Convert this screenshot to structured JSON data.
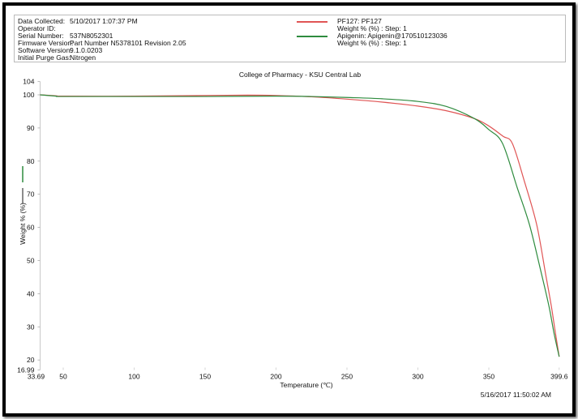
{
  "header": {
    "fields": [
      {
        "key": "Data Collected:",
        "value": "5/10/2017 1:07:37 PM"
      },
      {
        "key": "Operator ID:",
        "value": ""
      },
      {
        "key": "Serial Number:",
        "value": "537N8052301"
      },
      {
        "key": "Firmware Version:",
        "value": "Part Number N5378101  Revision 2.05"
      },
      {
        "key": "Software Version:",
        "value": "9.1.0.0203"
      },
      {
        "key": "Initial Purge Gas:",
        "value": "Nitrogen"
      }
    ],
    "legend": [
      {
        "name": "PF127: PF127",
        "sub": "Weight % (%) : Step: 1",
        "color": "#e05555"
      },
      {
        "name": "Apigenin: Apigenin@170510123036",
        "sub": "Weight % (%) : Step: 1",
        "color": "#2e8b3e"
      }
    ]
  },
  "footer": {
    "timestamp": "5/16/2017 11:50:02 AM"
  },
  "chart_data": {
    "type": "line",
    "title": "College of Pharmacy - KSU Central Lab",
    "xlabel": "Temperature (℃)",
    "ylabel": "Weight % (%)",
    "xlim": [
      33.69,
      399.6
    ],
    "ylim": [
      16.99,
      104
    ],
    "xticks": [
      "33.69",
      "50",
      "100",
      "150",
      "200",
      "250",
      "300",
      "350",
      "399.6"
    ],
    "xtick_values": [
      33.69,
      50,
      100,
      150,
      200,
      250,
      300,
      350,
      399.6
    ],
    "yticks": [
      "104",
      "100",
      "90",
      "80",
      "70",
      "60",
      "50",
      "40",
      "30",
      "20",
      "16.99"
    ],
    "ytick_values": [
      104,
      100,
      90,
      80,
      70,
      60,
      50,
      40,
      30,
      20,
      16.99
    ],
    "grid": false,
    "series": [
      {
        "name": "PF127: PF127",
        "color": "#e05555",
        "x": [
          33.69,
          45,
          50,
          100,
          150,
          180,
          200,
          225,
          250,
          275,
          300,
          320,
          340,
          350,
          360,
          366.6,
          375,
          383.7,
          390,
          394,
          397,
          399.6
        ],
        "y": [
          100,
          99.7,
          99.6,
          99.6,
          99.8,
          99.9,
          99.8,
          99.4,
          98.7,
          97.8,
          96.6,
          95.2,
          92.8,
          90.6,
          87.5,
          85.3,
          74,
          60.9,
          46,
          36.4,
          28,
          21
        ]
      },
      {
        "name": "Apigenin: Apigenin@170510123036",
        "color": "#2e8b3e",
        "x": [
          33.69,
          45,
          50,
          100,
          150,
          200,
          225,
          250,
          275,
          300,
          320,
          340,
          350,
          359.7,
          370,
          378.6,
          386,
          392.3,
          396,
          399.6
        ],
        "y": [
          100,
          99.6,
          99.5,
          99.5,
          99.5,
          99.6,
          99.5,
          99.2,
          98.8,
          98.0,
          96.5,
          92.8,
          89.5,
          85.3,
          72,
          60.9,
          48,
          36.4,
          28,
          21
        ]
      }
    ]
  }
}
